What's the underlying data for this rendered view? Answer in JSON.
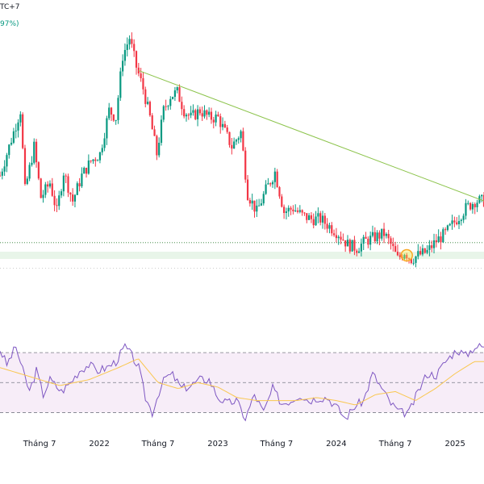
{
  "header": {
    "timezone_fragment": "TC+7",
    "change_fragment": "97%)",
    "change_color": "#089981"
  },
  "colors": {
    "up": "#089981",
    "down": "#f23645",
    "trendline": "#8bc34a",
    "support_zone": "#e8f5e9",
    "rsi_line": "#7e57c2",
    "rsi_ma": "#f9c74f",
    "rsi_band": "#f3e5f5",
    "highlight": "#f9a825"
  },
  "chart_data": [
    {
      "type": "candlestick",
      "x_axis": {
        "tick_labels": [
          "Tháng 7",
          "2022",
          "Tháng 7",
          "2023",
          "Tháng 7",
          "2024",
          "Tháng 7",
          "2025"
        ],
        "start": "2021-03-01",
        "end": "2025-03-31"
      },
      "price_path": [
        [
          "2021-03-01",
          0.62
        ],
        [
          "2021-04-05",
          0.72
        ],
        [
          "2021-05-03",
          0.8
        ],
        [
          "2021-05-17",
          0.58
        ],
        [
          "2021-06-14",
          0.7
        ],
        [
          "2021-07-05",
          0.56
        ],
        [
          "2021-08-02",
          0.6
        ],
        [
          "2021-08-23",
          0.52
        ],
        [
          "2021-09-13",
          0.63
        ],
        [
          "2021-10-11",
          0.55
        ],
        [
          "2021-11-08",
          0.62
        ],
        [
          "2021-12-06",
          0.66
        ],
        [
          "2022-01-03",
          0.68
        ],
        [
          "2022-01-31",
          0.8
        ],
        [
          "2022-02-21",
          0.78
        ],
        [
          "2022-03-14",
          0.95
        ],
        [
          "2022-04-04",
          1.0
        ],
        [
          "2022-04-25",
          0.92
        ],
        [
          "2022-05-16",
          0.86
        ],
        [
          "2022-06-06",
          0.78
        ],
        [
          "2022-06-27",
          0.68
        ],
        [
          "2022-07-18",
          0.8
        ],
        [
          "2022-08-08",
          0.84
        ],
        [
          "2022-08-29",
          0.85
        ],
        [
          "2022-09-19",
          0.8
        ],
        [
          "2022-10-10",
          0.78
        ],
        [
          "2022-11-07",
          0.8
        ],
        [
          "2022-12-05",
          0.78
        ],
        [
          "2023-01-02",
          0.78
        ],
        [
          "2023-01-23",
          0.74
        ],
        [
          "2023-02-13",
          0.7
        ],
        [
          "2023-03-13",
          0.74
        ],
        [
          "2023-04-03",
          0.57
        ],
        [
          "2023-05-01",
          0.52
        ],
        [
          "2023-05-29",
          0.58
        ],
        [
          "2023-06-26",
          0.63
        ],
        [
          "2023-07-24",
          0.52
        ],
        [
          "2023-08-21",
          0.53
        ],
        [
          "2023-09-18",
          0.51
        ],
        [
          "2023-10-16",
          0.5
        ],
        [
          "2023-11-13",
          0.5
        ],
        [
          "2023-12-11",
          0.48
        ],
        [
          "2024-01-08",
          0.46
        ],
        [
          "2024-02-05",
          0.43
        ],
        [
          "2024-03-04",
          0.42
        ],
        [
          "2024-04-01",
          0.44
        ],
        [
          "2024-04-29",
          0.45
        ],
        [
          "2024-05-27",
          0.46
        ],
        [
          "2024-06-17",
          0.43
        ],
        [
          "2024-07-08",
          0.39
        ],
        [
          "2024-07-29",
          0.41
        ],
        [
          "2024-08-19",
          0.39
        ],
        [
          "2024-09-09",
          0.4
        ],
        [
          "2024-10-07",
          0.41
        ],
        [
          "2024-11-04",
          0.44
        ],
        [
          "2024-12-02",
          0.46
        ],
        [
          "2025-01-06",
          0.5
        ],
        [
          "2025-02-03",
          0.53
        ],
        [
          "2025-03-03",
          0.55
        ]
      ],
      "trendline": {
        "from": [
          "2022-05-02",
          0.91
        ],
        "to": [
          "2025-03-31",
          0.55
        ]
      },
      "support_zone": [
        0.39,
        0.41
      ],
      "support_line": 0.435,
      "highlight_point": [
        "2024-08-05",
        0.4
      ]
    },
    {
      "type": "line",
      "indicator": "RSI",
      "bands": {
        "upper": 70,
        "middle": 50,
        "lower": 30
      },
      "ylim": [
        20,
        90
      ],
      "rsi_path": [
        [
          "2021-03-01",
          72
        ],
        [
          "2021-03-22",
          62
        ],
        [
          "2021-04-19",
          74
        ],
        [
          "2021-05-10",
          58
        ],
        [
          "2021-05-31",
          44
        ],
        [
          "2021-06-21",
          58
        ],
        [
          "2021-07-12",
          42
        ],
        [
          "2021-08-02",
          52
        ],
        [
          "2021-09-06",
          44
        ],
        [
          "2021-10-04",
          50
        ],
        [
          "2021-11-01",
          58
        ],
        [
          "2021-11-29",
          62
        ],
        [
          "2021-12-27",
          58
        ],
        [
          "2022-01-24",
          60
        ],
        [
          "2022-02-21",
          64
        ],
        [
          "2022-03-21",
          74
        ],
        [
          "2022-04-11",
          68
        ],
        [
          "2022-05-02",
          60
        ],
        [
          "2022-05-23",
          40
        ],
        [
          "2022-06-13",
          30
        ],
        [
          "2022-07-04",
          44
        ],
        [
          "2022-07-25",
          54
        ],
        [
          "2022-08-15",
          55
        ],
        [
          "2022-09-12",
          46
        ],
        [
          "2022-10-10",
          48
        ],
        [
          "2022-11-07",
          52
        ],
        [
          "2022-12-05",
          52
        ],
        [
          "2023-01-02",
          40
        ],
        [
          "2023-01-30",
          36
        ],
        [
          "2023-02-27",
          38
        ],
        [
          "2023-03-27",
          26
        ],
        [
          "2023-04-24",
          42
        ],
        [
          "2023-05-22",
          30
        ],
        [
          "2023-06-19",
          46
        ],
        [
          "2023-07-17",
          36
        ],
        [
          "2023-08-14",
          38
        ],
        [
          "2023-09-11",
          42
        ],
        [
          "2023-10-09",
          38
        ],
        [
          "2023-11-06",
          40
        ],
        [
          "2023-12-04",
          40
        ],
        [
          "2024-01-01",
          34
        ],
        [
          "2024-01-29",
          26
        ],
        [
          "2024-02-26",
          34
        ],
        [
          "2024-03-25",
          38
        ],
        [
          "2024-04-22",
          56
        ],
        [
          "2024-05-20",
          46
        ],
        [
          "2024-06-17",
          36
        ],
        [
          "2024-07-15",
          30
        ],
        [
          "2024-08-12",
          30
        ],
        [
          "2024-09-09",
          44
        ],
        [
          "2024-10-07",
          56
        ],
        [
          "2024-11-04",
          55
        ],
        [
          "2024-12-02",
          64
        ],
        [
          "2025-01-06",
          72
        ],
        [
          "2025-02-03",
          68
        ],
        [
          "2025-03-03",
          74
        ]
      ],
      "ma_path": [
        [
          "2021-03-01",
          60
        ],
        [
          "2021-06-01",
          54
        ],
        [
          "2021-09-01",
          48
        ],
        [
          "2021-12-01",
          52
        ],
        [
          "2022-03-01",
          60
        ],
        [
          "2022-05-01",
          66
        ],
        [
          "2022-07-01",
          50
        ],
        [
          "2022-09-01",
          46
        ],
        [
          "2022-11-01",
          50
        ],
        [
          "2023-01-01",
          47
        ],
        [
          "2023-03-01",
          40
        ],
        [
          "2023-05-01",
          38
        ],
        [
          "2023-07-01",
          38
        ],
        [
          "2023-09-01",
          38
        ],
        [
          "2023-11-01",
          40
        ],
        [
          "2024-01-01",
          38
        ],
        [
          "2024-03-01",
          35
        ],
        [
          "2024-05-01",
          42
        ],
        [
          "2024-07-01",
          44
        ],
        [
          "2024-09-01",
          38
        ],
        [
          "2024-11-01",
          46
        ],
        [
          "2025-01-01",
          56
        ],
        [
          "2025-03-01",
          64
        ]
      ]
    }
  ]
}
